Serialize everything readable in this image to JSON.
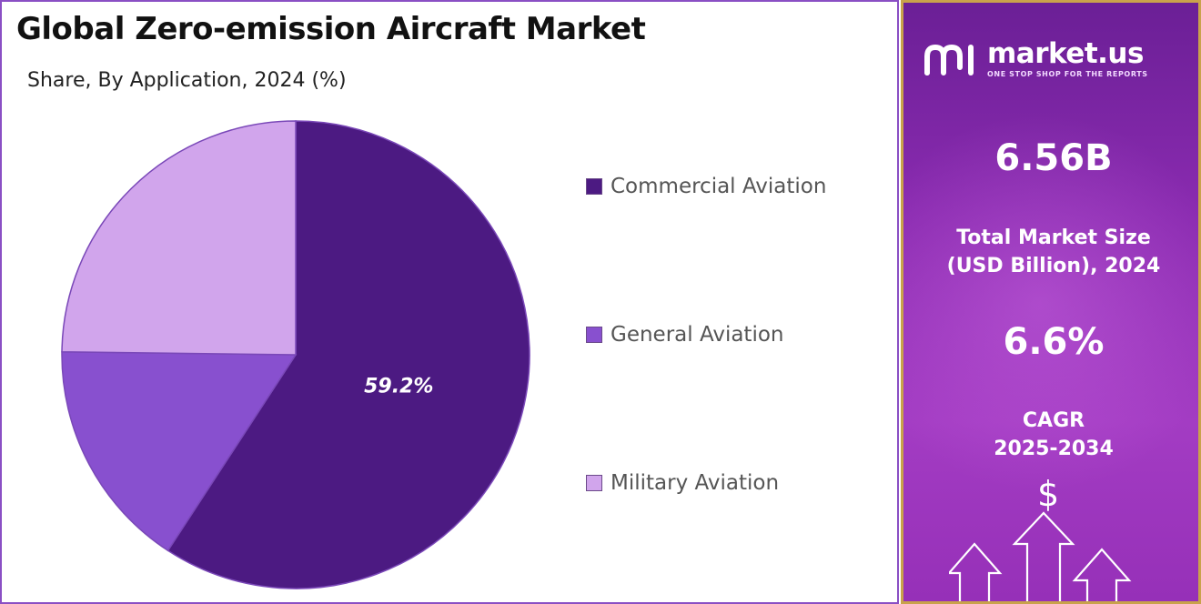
{
  "title": "Global Zero-emission Aircraft Market",
  "subtitle": "Share, By Application, 2024 (%)",
  "chart_data": {
    "type": "pie",
    "title": "Global Zero-emission Aircraft Market",
    "subtitle": "Share, By Application, 2024 (%)",
    "categories": [
      "Commercial Aviation",
      "General Aviation",
      "Military Aviation"
    ],
    "values": [
      59.2,
      16.0,
      24.8
    ],
    "data_labels": [
      "59.2%",
      "",
      ""
    ],
    "colors": [
      "#4c1a82",
      "#8850cf",
      "#d1a5ec"
    ],
    "legend_position": "right"
  },
  "legend": [
    {
      "label": "Commercial Aviation",
      "color": "#4c1a82"
    },
    {
      "label": "General Aviation",
      "color": "#8850cf"
    },
    {
      "label": "Military Aviation",
      "color": "#d1a5ec"
    }
  ],
  "sidebar": {
    "brand_name": "market.us",
    "brand_tagline": "ONE STOP SHOP FOR THE REPORTS",
    "market_size_value": "6.56B",
    "market_size_label_line1": "Total Market Size",
    "market_size_label_line2": "(USD Billion), 2024",
    "cagr_value": "6.6%",
    "cagr_label_line1": "CAGR",
    "cagr_label_line2": "2025-2034",
    "dollar_symbol": "$",
    "icons": [
      "market-us-logo-icon",
      "dollar-icon",
      "growth-arrows-icon"
    ]
  },
  "colors": {
    "panel_border": "#8a4fc4",
    "sidebar_border": "#c9a24b",
    "sidebar_bg": "#8a2bb0"
  }
}
